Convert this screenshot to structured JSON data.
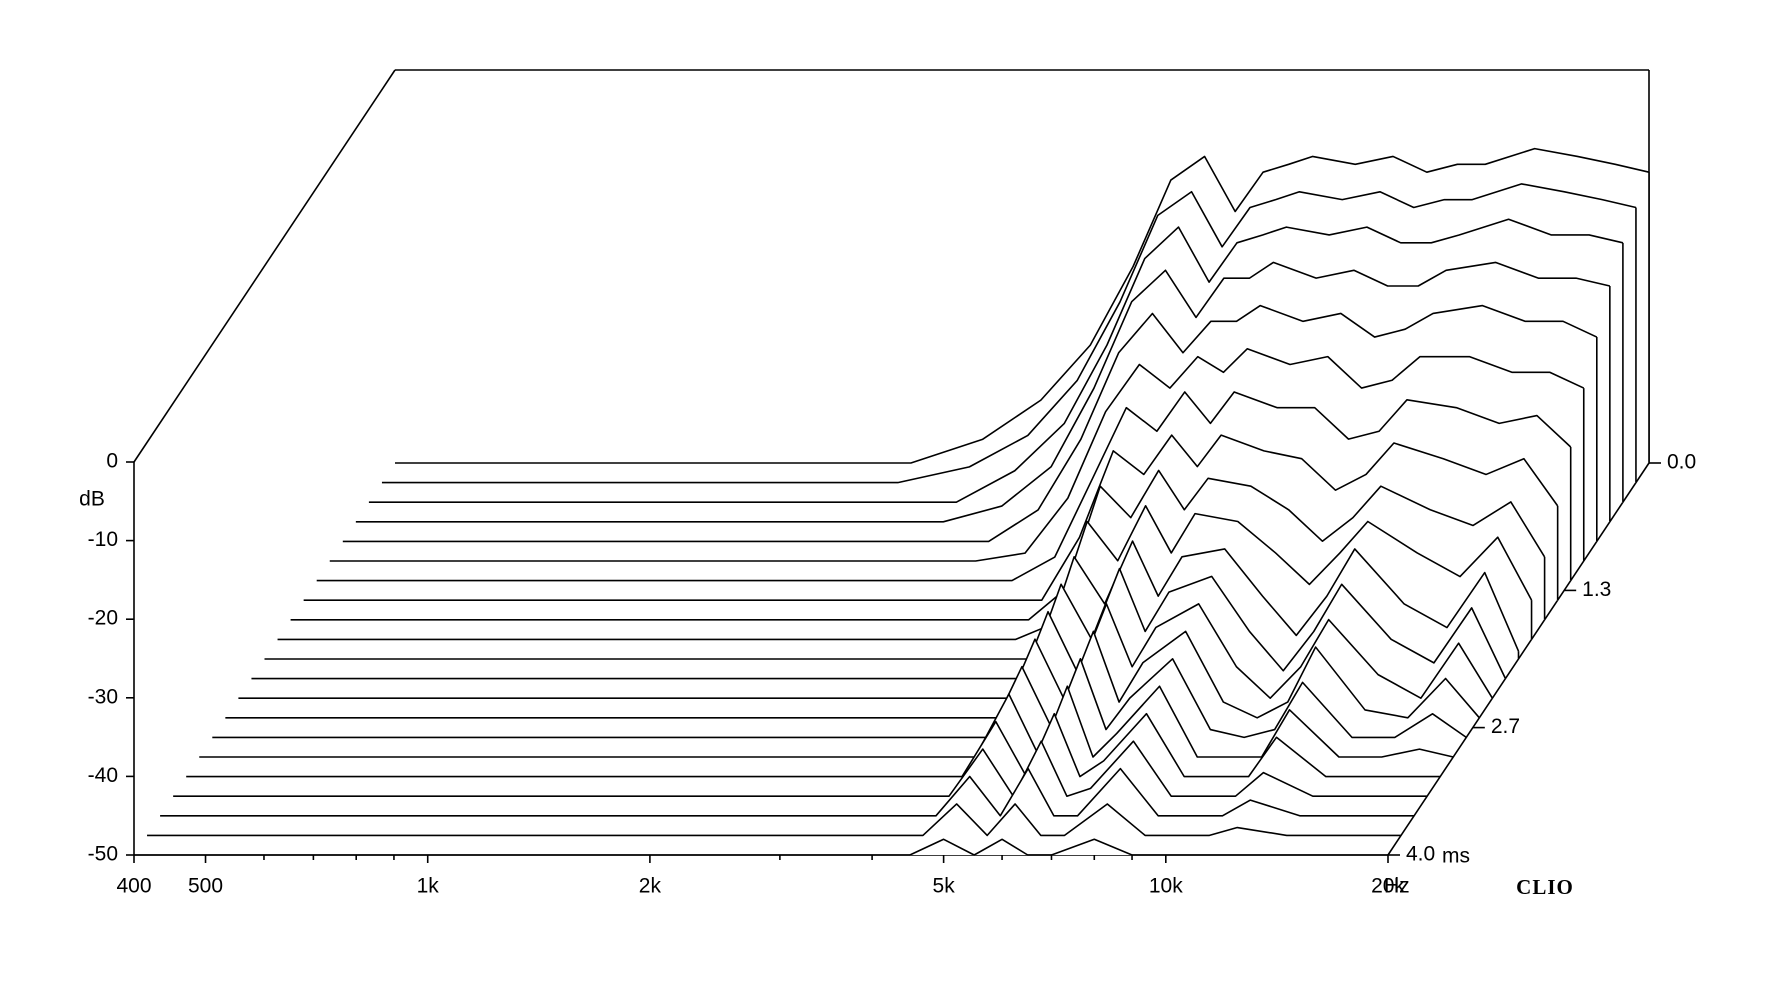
{
  "chart_data": {
    "type": "waterfall",
    "y_label": "dB",
    "x_label": "Hz",
    "z_label": "ms",
    "brand": "CLIO",
    "xscale": "log",
    "color": "#000000",
    "xlim": [
      400,
      20000
    ],
    "xticks": [
      400,
      500,
      {
        "value": 1000,
        "label": "1k"
      },
      {
        "value": 2000,
        "label": "2k"
      },
      {
        "value": 5000,
        "label": "5k"
      },
      {
        "value": 10000,
        "label": "10k"
      },
      {
        "value": 20000,
        "label": "20k"
      }
    ],
    "xminorticks": [
      600,
      700,
      800,
      900,
      3000,
      4000,
      6000,
      7000,
      8000,
      9000
    ],
    "ylim": [
      -50,
      0
    ],
    "yticks": [
      0,
      -10,
      -20,
      -30,
      -40,
      -50
    ],
    "zlim": [
      0,
      4
    ],
    "zticks": [
      {
        "value": 0,
        "label": "0.0"
      },
      {
        "value": 1.3,
        "label": "1.3"
      },
      {
        "value": 2.7,
        "label": "2.7"
      },
      {
        "value": 4,
        "label": "4.0"
      }
    ],
    "x": [
      400,
      2000,
      2500,
      3000,
      3500,
      4000,
      4500,
      5000,
      5500,
      6000,
      6500,
      7000,
      8000,
      9000,
      10000,
      11000,
      12000,
      14000,
      16000,
      18000,
      20000
    ],
    "z": [
      0,
      0.2,
      0.4,
      0.6,
      0.8,
      1.0,
      1.2,
      1.4,
      1.6,
      1.8,
      2.0,
      2.2,
      2.4,
      2.6,
      2.8,
      3.0,
      3.2,
      3.4,
      3.6,
      3.8,
      4.0
    ],
    "series": [
      {
        "values": [
          -50,
          -50,
          -47,
          -42,
          -35,
          -25,
          -14,
          -11,
          -18,
          -13,
          -12,
          -11,
          -12,
          -11,
          -13,
          -12,
          -12,
          -10,
          -11,
          -12,
          -13
        ]
      },
      {
        "values": [
          -50,
          -50,
          -48,
          -44,
          -37,
          -27,
          -16,
          -13,
          -20,
          -15,
          -14,
          -13,
          -14,
          -13,
          -15,
          -14,
          -14,
          -12,
          -13,
          -14,
          -15
        ]
      },
      {
        "values": [
          -50,
          -50,
          -50,
          -46,
          -40,
          -30,
          -19,
          -15,
          -22,
          -17,
          -16,
          -15,
          -16,
          -15,
          -17,
          -17,
          -16,
          -14,
          -16,
          -16,
          -17
        ]
      },
      {
        "values": [
          -50,
          -50,
          -50,
          -48,
          -43,
          -33,
          -22,
          -18,
          -24,
          -19,
          -19,
          -17,
          -19,
          -18,
          -20,
          -20,
          -18,
          -17,
          -19,
          -19,
          -20
        ]
      },
      {
        "values": [
          -50,
          -50,
          -50,
          -50,
          -46,
          -37,
          -26,
          -21,
          -26,
          -22,
          -22,
          -20,
          -22,
          -21,
          -24,
          -23,
          -21,
          -20,
          -22,
          -22,
          -24
        ]
      },
      {
        "values": [
          -50,
          -50,
          -50,
          -50,
          -49,
          -42,
          -31,
          -25,
          -28,
          -24,
          -26,
          -23,
          -25,
          -24,
          -28,
          -27,
          -24,
          -24,
          -26,
          -26,
          -28
        ]
      },
      {
        "values": [
          -50,
          -50,
          -50,
          -50,
          -50,
          -47,
          -37,
          -28,
          -31,
          -26,
          -30,
          -26,
          -28,
          -28,
          -32,
          -31,
          -27,
          -28,
          -30,
          -29,
          -33
        ]
      },
      {
        "values": [
          -50,
          -50,
          -50,
          -50,
          -50,
          -50,
          -42,
          -31,
          -34,
          -29,
          -33,
          -29,
          -31,
          -32,
          -36,
          -34,
          -30,
          -32,
          -34,
          -32,
          -38
        ]
      },
      {
        "values": [
          -50,
          -50,
          -50,
          -50,
          -50,
          -50,
          -46,
          -33,
          -37,
          -31,
          -36,
          -32,
          -33,
          -36,
          -40,
          -37,
          -33,
          -36,
          -38,
          -35,
          -42
        ]
      },
      {
        "values": [
          -50,
          -50,
          -50,
          -50,
          -50,
          -50,
          -48,
          -35,
          -40,
          -33,
          -39,
          -34,
          -35,
          -39,
          -43,
          -39,
          -35,
          -39,
          -42,
          -37,
          -45
        ]
      },
      {
        "values": [
          -50,
          -50,
          -50,
          -50,
          -50,
          -50,
          -50,
          -37,
          -43,
          -35,
          -42,
          -37,
          -36,
          -42,
          -47,
          -42,
          -36,
          -43,
          -46,
          -39,
          -49
        ]
      },
      {
        "values": [
          -50,
          -50,
          -50,
          -50,
          -50,
          -50,
          -50,
          -38,
          -45,
          -36,
          -44,
          -39,
          -37,
          -44,
          -49,
          -44,
          -38,
          -45,
          -48,
          -41,
          -50
        ]
      },
      {
        "values": [
          -50,
          -50,
          -50,
          -50,
          -50,
          -50,
          -50,
          -39,
          -47,
          -38,
          -46,
          -41,
          -38,
          -46,
          -50,
          -46,
          -40,
          -47,
          -50,
          -43,
          -50
        ]
      },
      {
        "values": [
          -50,
          -50,
          -50,
          -50,
          -50,
          -50,
          -50,
          -40,
          -48,
          -39,
          -48,
          -43,
          -39,
          -48,
          -50,
          -48,
          -41,
          -49,
          -50,
          -45,
          -50
        ]
      },
      {
        "values": [
          -50,
          -50,
          -50,
          -50,
          -50,
          -50,
          -50,
          -41,
          -49,
          -40,
          -49,
          -45,
          -40,
          -49,
          -50,
          -49,
          -43,
          -50,
          -50,
          -47,
          -50
        ]
      },
      {
        "values": [
          -50,
          -50,
          -50,
          -50,
          -50,
          -50,
          -50,
          -42,
          -50,
          -41,
          -50,
          -47,
          -41,
          -50,
          -50,
          -50,
          -44,
          -50,
          -50,
          -49,
          -50
        ]
      },
      {
        "values": [
          -50,
          -50,
          -50,
          -50,
          -50,
          -50,
          -50,
          -43,
          -50,
          -42,
          -50,
          -48,
          -42,
          -50,
          -50,
          -50,
          -45,
          -50,
          -50,
          -50,
          -50
        ]
      },
      {
        "values": [
          -50,
          -50,
          -50,
          -50,
          -50,
          -50,
          -50,
          -44,
          -50,
          -43,
          -50,
          -49,
          -43,
          -50,
          -50,
          -50,
          -47,
          -50,
          -50,
          -50,
          -50
        ]
      },
      {
        "values": [
          -50,
          -50,
          -50,
          -50,
          -50,
          -50,
          -50,
          -45,
          -50,
          -44,
          -50,
          -50,
          -44,
          -50,
          -50,
          -50,
          -48,
          -50,
          -50,
          -50,
          -50
        ]
      },
      {
        "values": [
          -50,
          -50,
          -50,
          -50,
          -50,
          -50,
          -50,
          -46,
          -50,
          -46,
          -50,
          -50,
          -46,
          -50,
          -50,
          -50,
          -49,
          -50,
          -50,
          -50,
          -50
        ]
      },
      {
        "values": [
          -50,
          -50,
          -50,
          -50,
          -50,
          -50,
          -50,
          -48,
          -50,
          -48,
          -50,
          -50,
          -48,
          -50,
          -50,
          -50,
          -50,
          -50,
          -50,
          -50,
          -50
        ]
      }
    ]
  }
}
